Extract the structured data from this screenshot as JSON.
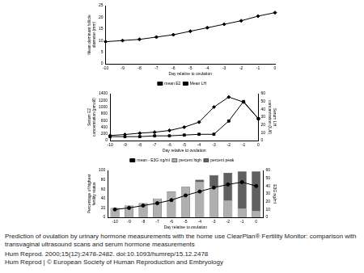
{
  "chart_data": [
    {
      "type": "line",
      "categories": [
        -10,
        -9,
        -8,
        -7,
        -6,
        -5,
        -4,
        -3,
        -2,
        -1,
        0
      ],
      "values": [
        9.5,
        10,
        10.5,
        11.5,
        12.5,
        14,
        15.5,
        17,
        18.5,
        20.5,
        22
      ],
      "color": "#000000",
      "marker": "diamond",
      "x_label": "Day relative to ovulation",
      "y_label": "Mean dominant follicle diameter (mm)",
      "ylim": [
        0,
        25
      ],
      "yticks": [
        0,
        5,
        10,
        15,
        20,
        25
      ],
      "grid": false
    },
    {
      "type": "line",
      "categories": [
        -10,
        -9,
        -8,
        -7,
        -6,
        -5,
        -4,
        -3,
        -2,
        -1,
        0
      ],
      "series": [
        {
          "name": "mean E2",
          "color": "#000000",
          "marker": "diamond",
          "values": [
            150,
            180,
            220,
            250,
            300,
            400,
            550,
            1000,
            1300,
            1150,
            650
          ]
        },
        {
          "name": "Mean LH",
          "color": "#000000",
          "marker": "square",
          "axis": "y2",
          "values": [
            5,
            5,
            5,
            6,
            6,
            7,
            8,
            8,
            25,
            50,
            28
          ]
        }
      ],
      "x_label": "Day relative to ovulation",
      "y_label": "Serum E2 concentration (pmol/l)",
      "y2_label": "Serum LH concentration (IU/l)",
      "ylim": [
        0,
        1400
      ],
      "yticks": [
        0,
        200,
        400,
        600,
        800,
        1000,
        1200,
        1400
      ],
      "y2lim": [
        0,
        60
      ],
      "y2ticks": [
        0,
        10,
        20,
        30,
        40,
        50,
        60
      ],
      "legend": "top",
      "grid": false
    },
    {
      "type": "bar",
      "stacked": true,
      "categories": [
        -10,
        -9,
        -8,
        -7,
        -6,
        -5,
        -4,
        -3,
        -2,
        -1,
        0
      ],
      "series": [
        {
          "name": "percent high",
          "type": "bar",
          "color": "#b0b0b0",
          "values": [
            20,
            25,
            30,
            40,
            55,
            65,
            75,
            65,
            35,
            18,
            13
          ]
        },
        {
          "name": "percent peak",
          "type": "bar",
          "color": "#606060",
          "values": [
            0,
            0,
            0,
            0,
            0,
            0,
            5,
            25,
            60,
            80,
            85
          ]
        },
        {
          "name": "mean - E3G ng/ml",
          "type": "line",
          "color": "#000000",
          "marker": "circle",
          "axis": "y2",
          "values": [
            10,
            12,
            15,
            18,
            22,
            28,
            33,
            38,
            42,
            45,
            40
          ]
        }
      ],
      "x_label": "Day relative to ovulation",
      "y_label": "Percentage of highest fertility status",
      "y2_label": "E3G ng/ml",
      "ylim": [
        0,
        100
      ],
      "yticks": [
        0,
        20,
        40,
        60,
        80,
        100
      ],
      "y2lim": [
        0,
        60
      ],
      "y2ticks": [
        0,
        10,
        20,
        30,
        40,
        50,
        60
      ],
      "legend": "top",
      "grid": false
    }
  ],
  "caption": {
    "title": "Prediction of ovulation by urinary hormone measurements with the home use ClearPlan® Fertility Monitor: comparison with transvaginal ultrasound scans and serum hormone measurements",
    "citation": "Hum Reprod. 2000;15(12):2478-2482. doi:10.1093/humrep/15.12.2478",
    "copyright": "Hum Reprod | © European Society of Human Reproduction and Embryology"
  }
}
